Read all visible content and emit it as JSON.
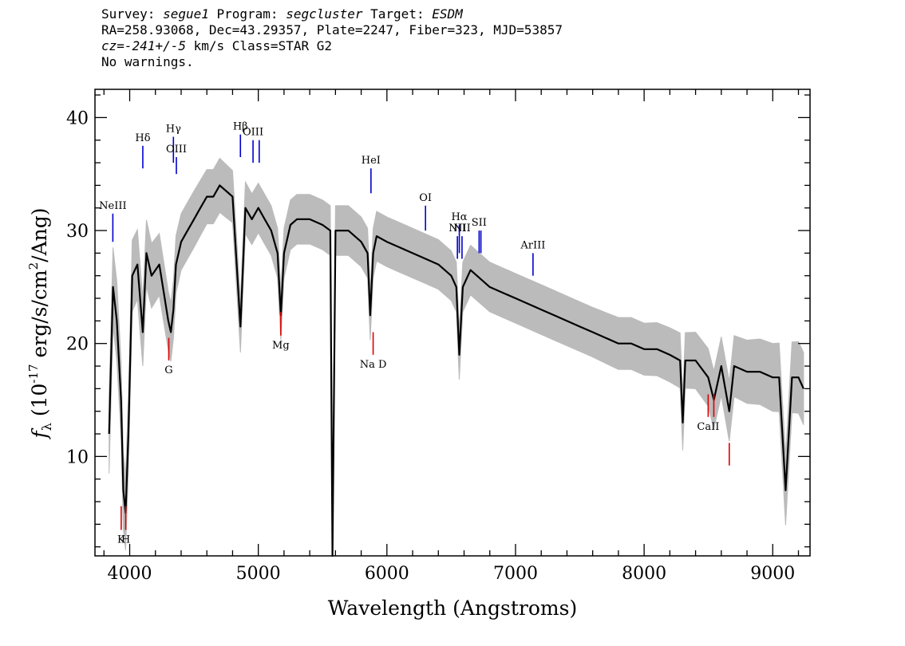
{
  "header": {
    "survey_label": "Survey: ",
    "survey": "segue1",
    "program_label": " Program: ",
    "program": "segcluster",
    "target_label": " Target: ",
    "target": "ESDM",
    "line2": "RA=258.93068, Dec=43.29357, Plate=2247, Fiber=323, MJD=53857",
    "cz_prefix": "cz=",
    "cz_value": "-241+/-5",
    "cz_suffix": " km/s Class=STAR G2",
    "warnings": "No warnings."
  },
  "chart_data": {
    "type": "line",
    "title": "",
    "xlabel": "Wavelength (Angstroms)",
    "ylabel_parts": {
      "f": "f",
      "sub": "λ",
      "open": " (10",
      "exp1": "-17",
      "mid": " erg/s/cm",
      "exp2": "2",
      "close": "/Ang)"
    },
    "xlim": [
      3730,
      9290
    ],
    "ylim": [
      1.2,
      42.5
    ],
    "xticks": [
      4000,
      5000,
      6000,
      7000,
      8000,
      9000
    ],
    "yticks": [
      10,
      20,
      30,
      40
    ],
    "x_minor_step": 200,
    "y_minor_step": 2,
    "series": [
      {
        "style": "flux",
        "color": "#000000",
        "x": [
          3840,
          3870,
          3900,
          3933,
          3950,
          3968,
          3990,
          4020,
          4060,
          4102,
          4130,
          4170,
          4230,
          4300,
          4320,
          4340,
          4360,
          4400,
          4450,
          4500,
          4550,
          4600,
          4650,
          4700,
          4750,
          4800,
          4861,
          4900,
          4950,
          5000,
          5050,
          5100,
          5150,
          5175,
          5200,
          5250,
          5300,
          5400,
          5500,
          5560,
          5577,
          5600,
          5700,
          5800,
          5850,
          5870,
          5893,
          5920,
          6000,
          6100,
          6200,
          6300,
          6400,
          6500,
          6540,
          6563,
          6590,
          6650,
          6700,
          6800,
          6900,
          7000,
          7100,
          7200,
          7300,
          7400,
          7500,
          7600,
          7700,
          7800,
          7900,
          8000,
          8100,
          8200,
          8280,
          8300,
          8320,
          8400,
          8498,
          8542,
          8600,
          8662,
          8700,
          8800,
          8900,
          9000,
          9050,
          9100,
          9150,
          9200,
          9240
        ],
        "y": [
          12,
          25,
          22,
          15,
          7,
          5,
          12,
          26,
          27,
          21,
          28,
          26,
          27,
          22,
          21,
          23,
          27,
          29,
          30,
          31,
          32,
          33,
          33,
          34,
          33.5,
          33,
          21.5,
          32,
          31,
          32,
          31,
          30,
          28,
          22.5,
          28,
          30.5,
          31,
          31,
          30.5,
          30,
          1.2,
          30,
          30,
          29,
          28,
          22.5,
          28,
          29.5,
          29,
          28.5,
          28,
          27.5,
          27,
          26,
          25,
          19,
          25,
          26.5,
          26,
          25,
          24.5,
          24,
          23.5,
          23,
          22.5,
          22,
          21.5,
          21,
          20.5,
          20,
          20,
          19.5,
          19.5,
          19,
          18.5,
          13,
          18.5,
          18.5,
          17,
          15,
          18,
          14,
          18,
          17.5,
          17.5,
          17,
          17,
          7,
          17,
          17,
          16
        ]
      },
      {
        "style": "error",
        "color": "#bbbbbb",
        "x": [
          3840,
          3900,
          4000,
          4100,
          4200,
          4300,
          4400,
          4500,
          4600,
          4700,
          4800,
          4900,
          5000,
          5200,
          5400,
          5600,
          5800,
          6000,
          6200,
          6400,
          6600,
          6800,
          7000,
          7200,
          7400,
          7600,
          7800,
          8000,
          8200,
          8400,
          8600,
          8800,
          9000,
          9240
        ],
        "y": [
          3.5,
          3.5,
          3.2,
          3,
          2.8,
          2.6,
          2.5,
          2.5,
          2.4,
          2.4,
          2.3,
          2.3,
          2.2,
          2.2,
          2.2,
          2.2,
          2.2,
          2.2,
          2.2,
          2.2,
          2.2,
          2.2,
          2.2,
          2.2,
          2.2,
          2.2,
          2.3,
          2.3,
          2.4,
          2.5,
          2.6,
          2.8,
          3,
          3.2
        ]
      }
    ],
    "emission_lines": [
      {
        "label": "NeIII",
        "x": 3869,
        "y1": 29,
        "y2": 31.5
      },
      {
        "label": "Hδ",
        "x": 4102,
        "y1": 35.5,
        "y2": 37.5
      },
      {
        "label": "Hγ",
        "x": 4340,
        "y1": 36,
        "y2": 38.3
      },
      {
        "label": "OIII",
        "x": 4363,
        "y1": 35,
        "y2": 36.5
      },
      {
        "label": "Hβ",
        "x": 4861,
        "y1": 36.5,
        "y2": 38.5
      },
      {
        "label": "OIII",
        "x": 4959,
        "y1": 36,
        "y2": 38
      },
      {
        "label": "",
        "x": 5007,
        "y1": 36,
        "y2": 38
      },
      {
        "label": "HeI",
        "x": 5876,
        "y1": 33.3,
        "y2": 35.5
      },
      {
        "label": "OI",
        "x": 6300,
        "y1": 30,
        "y2": 32.2
      },
      {
        "label": "NII",
        "x": 6548,
        "y1": 27.5,
        "y2": 29.5
      },
      {
        "label": "Hα",
        "x": 6563,
        "y1": 28,
        "y2": 30.5
      },
      {
        "label": "NII",
        "x": 6584,
        "y1": 27.5,
        "y2": 29.5
      },
      {
        "label": "SII",
        "x": 6717,
        "y1": 28,
        "y2": 30
      },
      {
        "label": "",
        "x": 6731,
        "y1": 28,
        "y2": 30
      },
      {
        "label": "ArIII",
        "x": 7136,
        "y1": 26,
        "y2": 28
      }
    ],
    "absorption_lines": [
      {
        "label": "K",
        "x": 3934,
        "y1": 3.5,
        "y2": 5.6
      },
      {
        "label": "H",
        "x": 3969,
        "y1": 3.5,
        "y2": 5.6
      },
      {
        "label": "G",
        "x": 4304,
        "y1": 18.5,
        "y2": 20.5
      },
      {
        "label": "Mg",
        "x": 5175,
        "y1": 20.7,
        "y2": 22.8
      },
      {
        "label": "Na D",
        "x": 5893,
        "y1": 19,
        "y2": 21
      },
      {
        "label": "CaII",
        "x": 8498,
        "y1": 13.5,
        "y2": 15.5
      },
      {
        "label": "",
        "x": 8542,
        "y1": 13.5,
        "y2": 15.5
      },
      {
        "label": "",
        "x": 8662,
        "y1": 9.2,
        "y2": 11.2
      }
    ],
    "emission_color": "#0000cc",
    "absorption_color": "#dd0000"
  }
}
